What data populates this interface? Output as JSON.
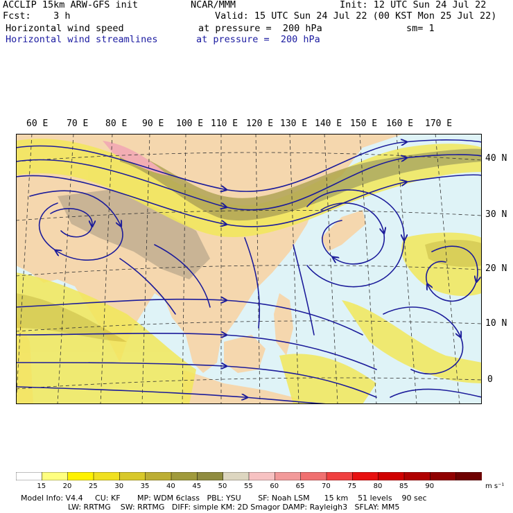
{
  "header": {
    "line1_left": "ACCLIP 15km ARW-GFS init",
    "line1_mid": "NCAR/MMM",
    "line1_right": "Init: 12 UTC Sun 24 Jul 22",
    "line2_left": "Fcst:    3 h",
    "line2_right": "Valid: 15 UTC Sun 24 Jul 22 (00 KST Mon 25 Jul 22)",
    "line3_left": "Horizontal wind speed",
    "line3_mid": "at pressure =  200 hPa",
    "line3_right": "sm= 1",
    "line4_left": "Horizontal wind streamlines",
    "line4_mid": "at pressure =  200 hPa"
  },
  "map": {
    "lon_labels": [
      "60 E",
      "70 E",
      "80 E",
      "90 E",
      "100 E",
      "110 E",
      "120 E",
      "130 E",
      "140 E",
      "150 E",
      "160 E",
      "170 E"
    ],
    "lat_labels": [
      "40 N",
      "30 N",
      "20 N",
      "10 N",
      "0"
    ],
    "colors": {
      "ocean": "#dff3f7",
      "land": "#f5d7ae",
      "terrain": "#b7a58a",
      "yellow": "#f2e85a",
      "gold": "#d9c93e",
      "olive": "#a59c48",
      "pink": "#f2a6b4",
      "streamline": "#1b1b9a"
    }
  },
  "colorbar": {
    "unit": "m s⁻¹",
    "labels": [
      "15",
      "20",
      "25",
      "30",
      "35",
      "40",
      "45",
      "50",
      "55",
      "60",
      "65",
      "70",
      "75",
      "80",
      "85",
      "90"
    ],
    "colors": [
      "#ffffff",
      "#ffff80",
      "#fff200",
      "#f0e020",
      "#d8c82a",
      "#bcae34",
      "#a09a3c",
      "#908c40",
      "#ddd6c0",
      "#f7c2c2",
      "#f29a9a",
      "#f07070",
      "#f04040",
      "#e81010",
      "#d00000",
      "#b00000",
      "#900000",
      "#6e0000"
    ]
  },
  "footer": {
    "line1": "Model Info: V4.4     CU: KF       MP: WDM 6class   PBL: YSU       SF: Noah LSM      15 km    51 levels    90 sec",
    "line2": "LW: RRTMG    SW: RRTMG   DIFF: simple KM: 2D Smagor DAMP: Rayleigh3   SFLAY: MM5"
  }
}
